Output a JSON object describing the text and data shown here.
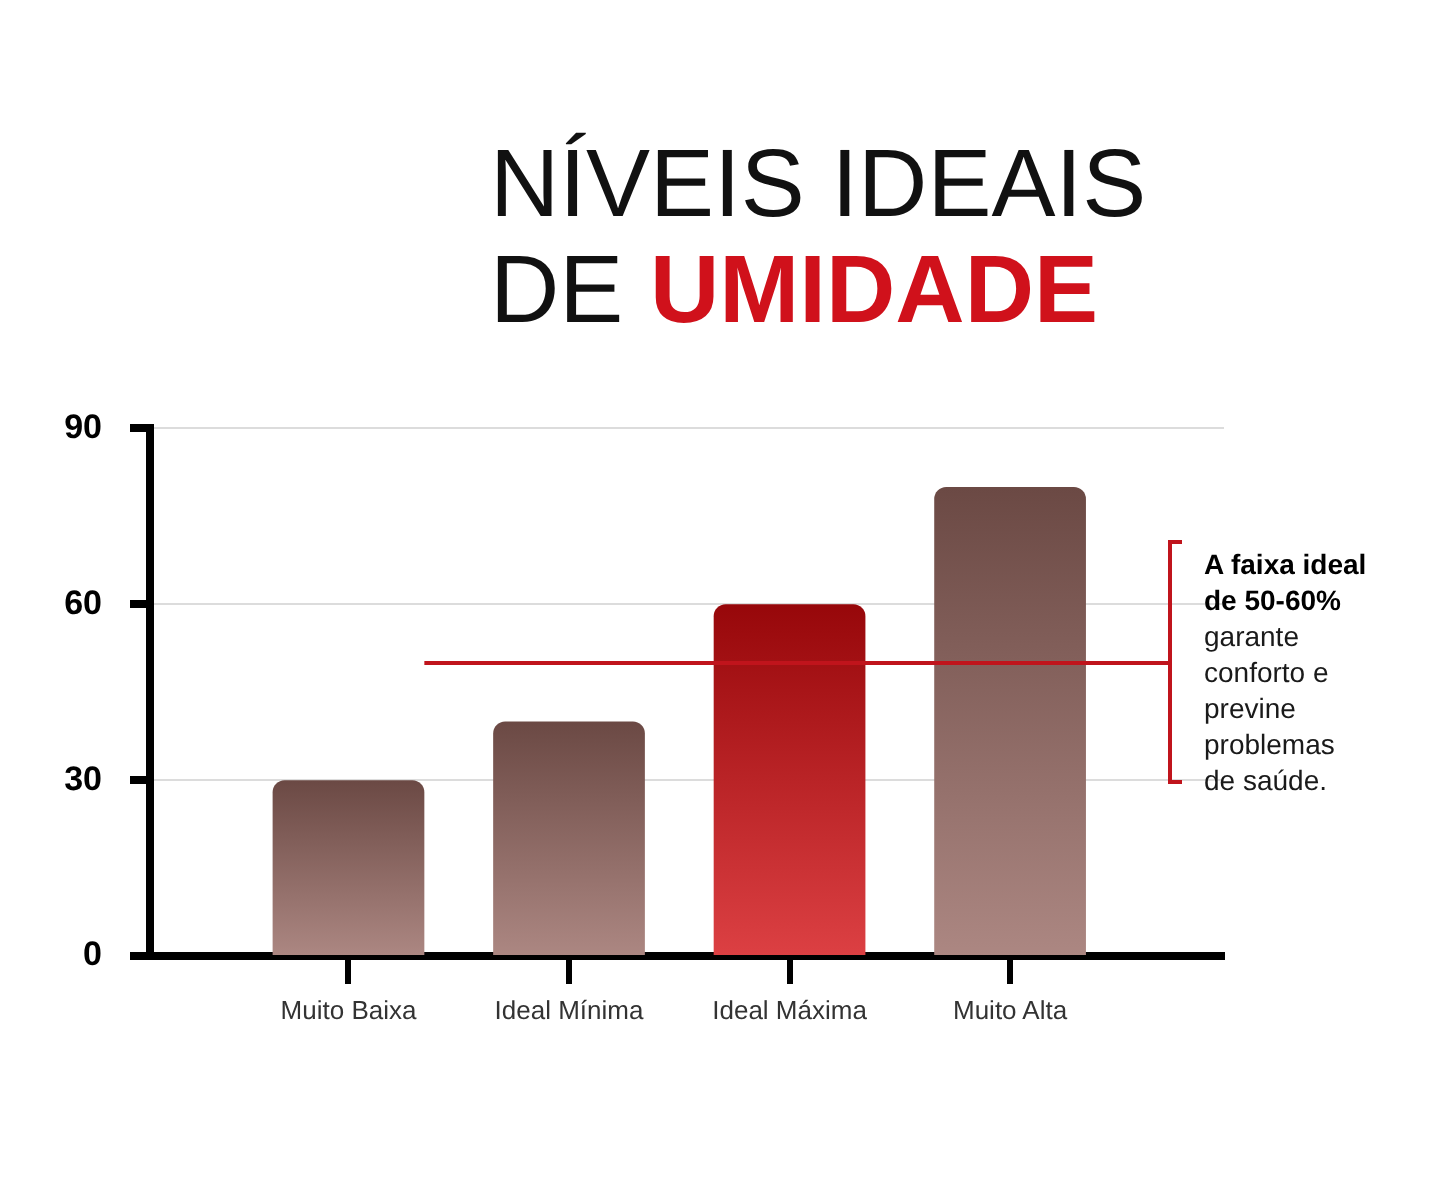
{
  "chart_data": {
    "type": "bar",
    "title": "NÍVEIS IDEAIS DE UMIDADE",
    "categories": [
      "Muito Baixa",
      "Ideal Mínima",
      "Ideal Máxima",
      "Muito Alta"
    ],
    "values": [
      30,
      40,
      60,
      80
    ],
    "colors": [
      "#94655f",
      "#94655f",
      "#d20a0e",
      "#94655f"
    ],
    "ylim": [
      0,
      90
    ],
    "yticks": [
      0,
      30,
      60,
      90
    ],
    "grid": "y",
    "ref_lines": [
      {
        "axis": "y",
        "value": 50,
        "label": "A faixa ideal de 50-60%",
        "color": "#c0141c"
      }
    ],
    "annotations": [
      "garante conforto e previne problemas de saúde."
    ]
  }
}
